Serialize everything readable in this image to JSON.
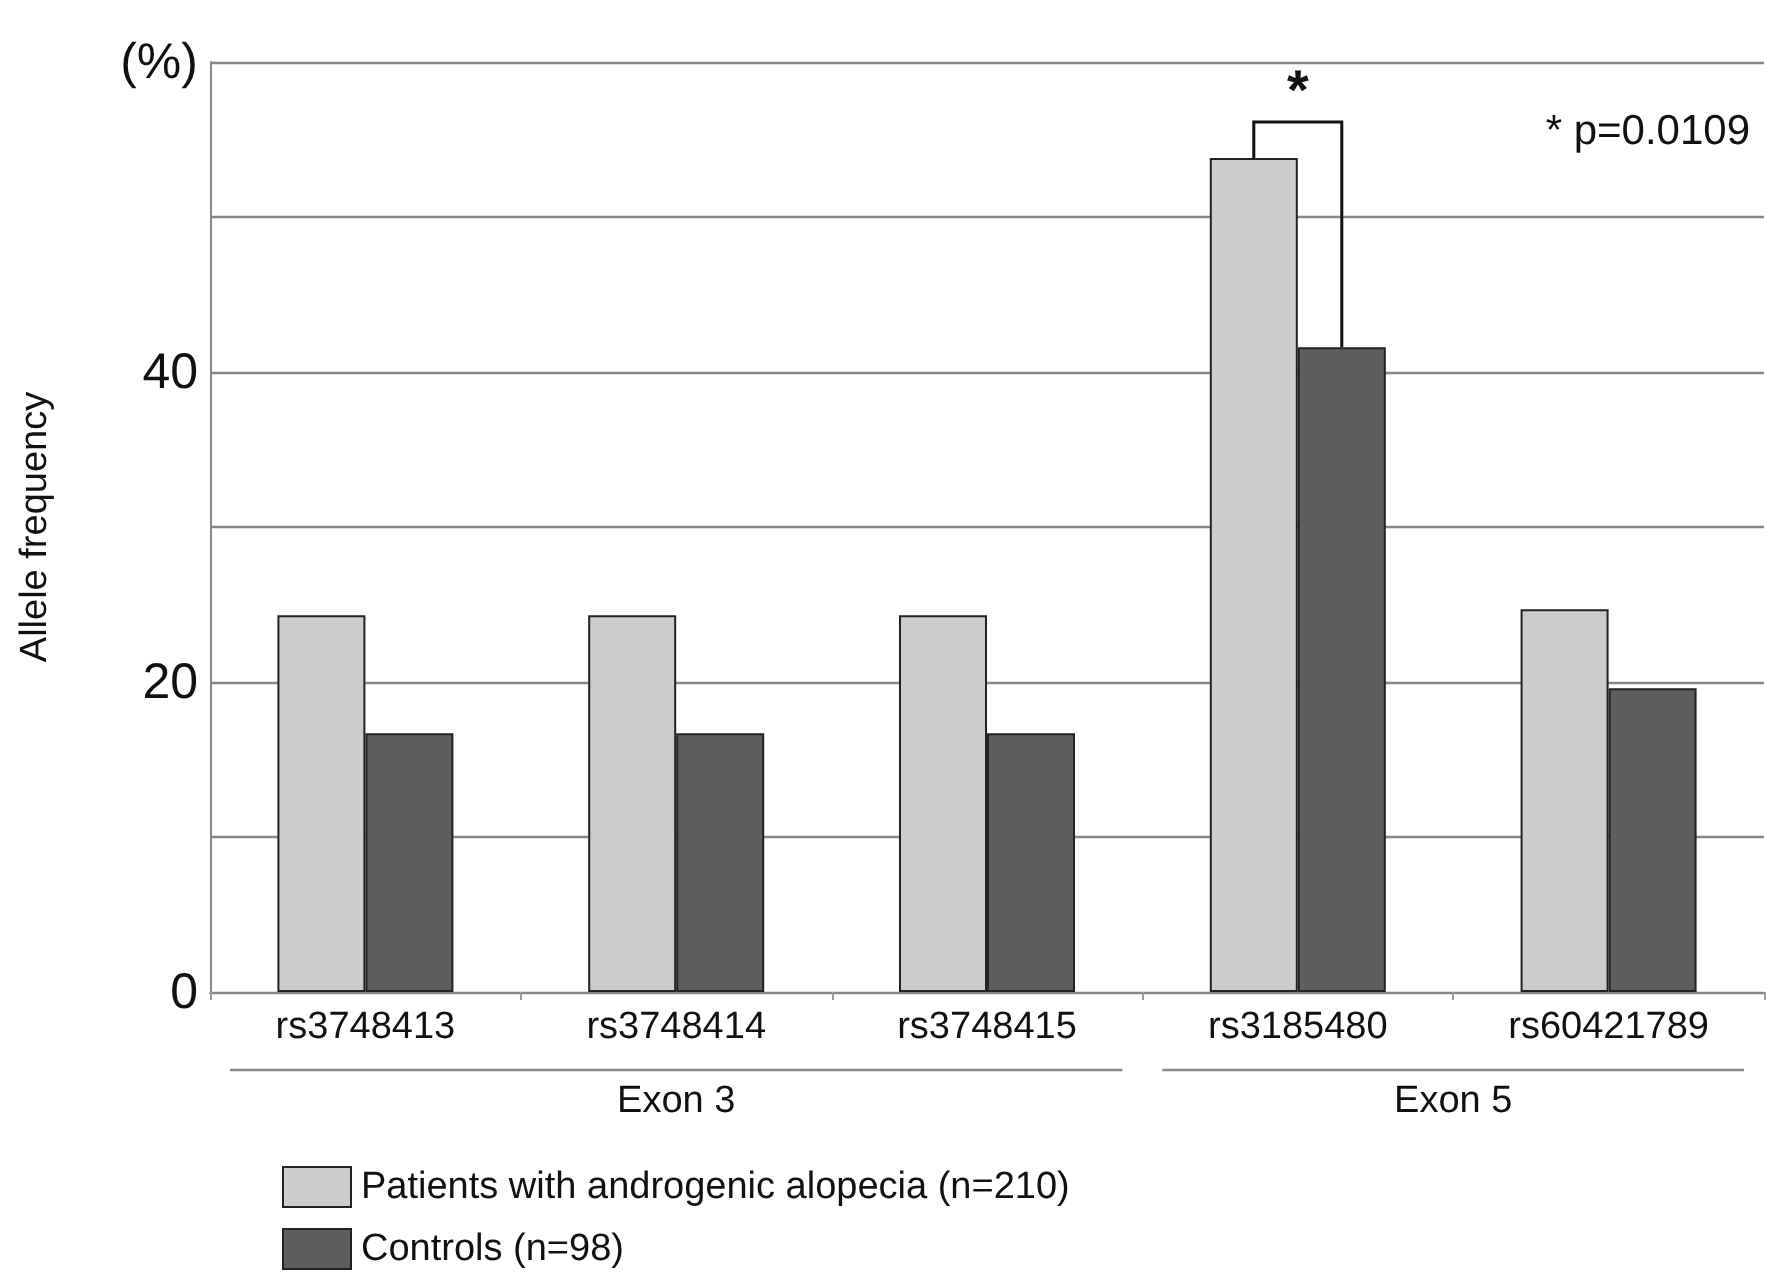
{
  "chart_data": {
    "type": "bar",
    "categories": [
      "rs3748413",
      "rs3748414",
      "rs3748415",
      "rs3185480",
      "rs60421789"
    ],
    "series": [
      {
        "name": "Patients with androgenic alopecia (n=210)",
        "color": "#cccccc",
        "values": [
          24.3,
          24.3,
          24.3,
          53.8,
          24.7
        ]
      },
      {
        "name": "Controls (n=98)",
        "color": "#5e5e5e",
        "values": [
          16.7,
          16.7,
          16.7,
          41.6,
          19.6
        ]
      }
    ],
    "ylabel": "Allele frequency",
    "ylim": [
      0,
      60
    ],
    "yticks": [
      0,
      {
        "value": 10,
        "label": null
      },
      20,
      {
        "value": 30,
        "label": null
      },
      40,
      {
        "value": 50,
        "label": null
      },
      {
        "value": 60,
        "label": "(%)"
      }
    ],
    "grid": "y",
    "legend": "bottom left",
    "annotations": [
      {
        "text": "*",
        "x": "rs3185480",
        "y": 53.8
      },
      "* p=0.0109",
      "Exon 3",
      "Exon 5"
    ]
  }
}
